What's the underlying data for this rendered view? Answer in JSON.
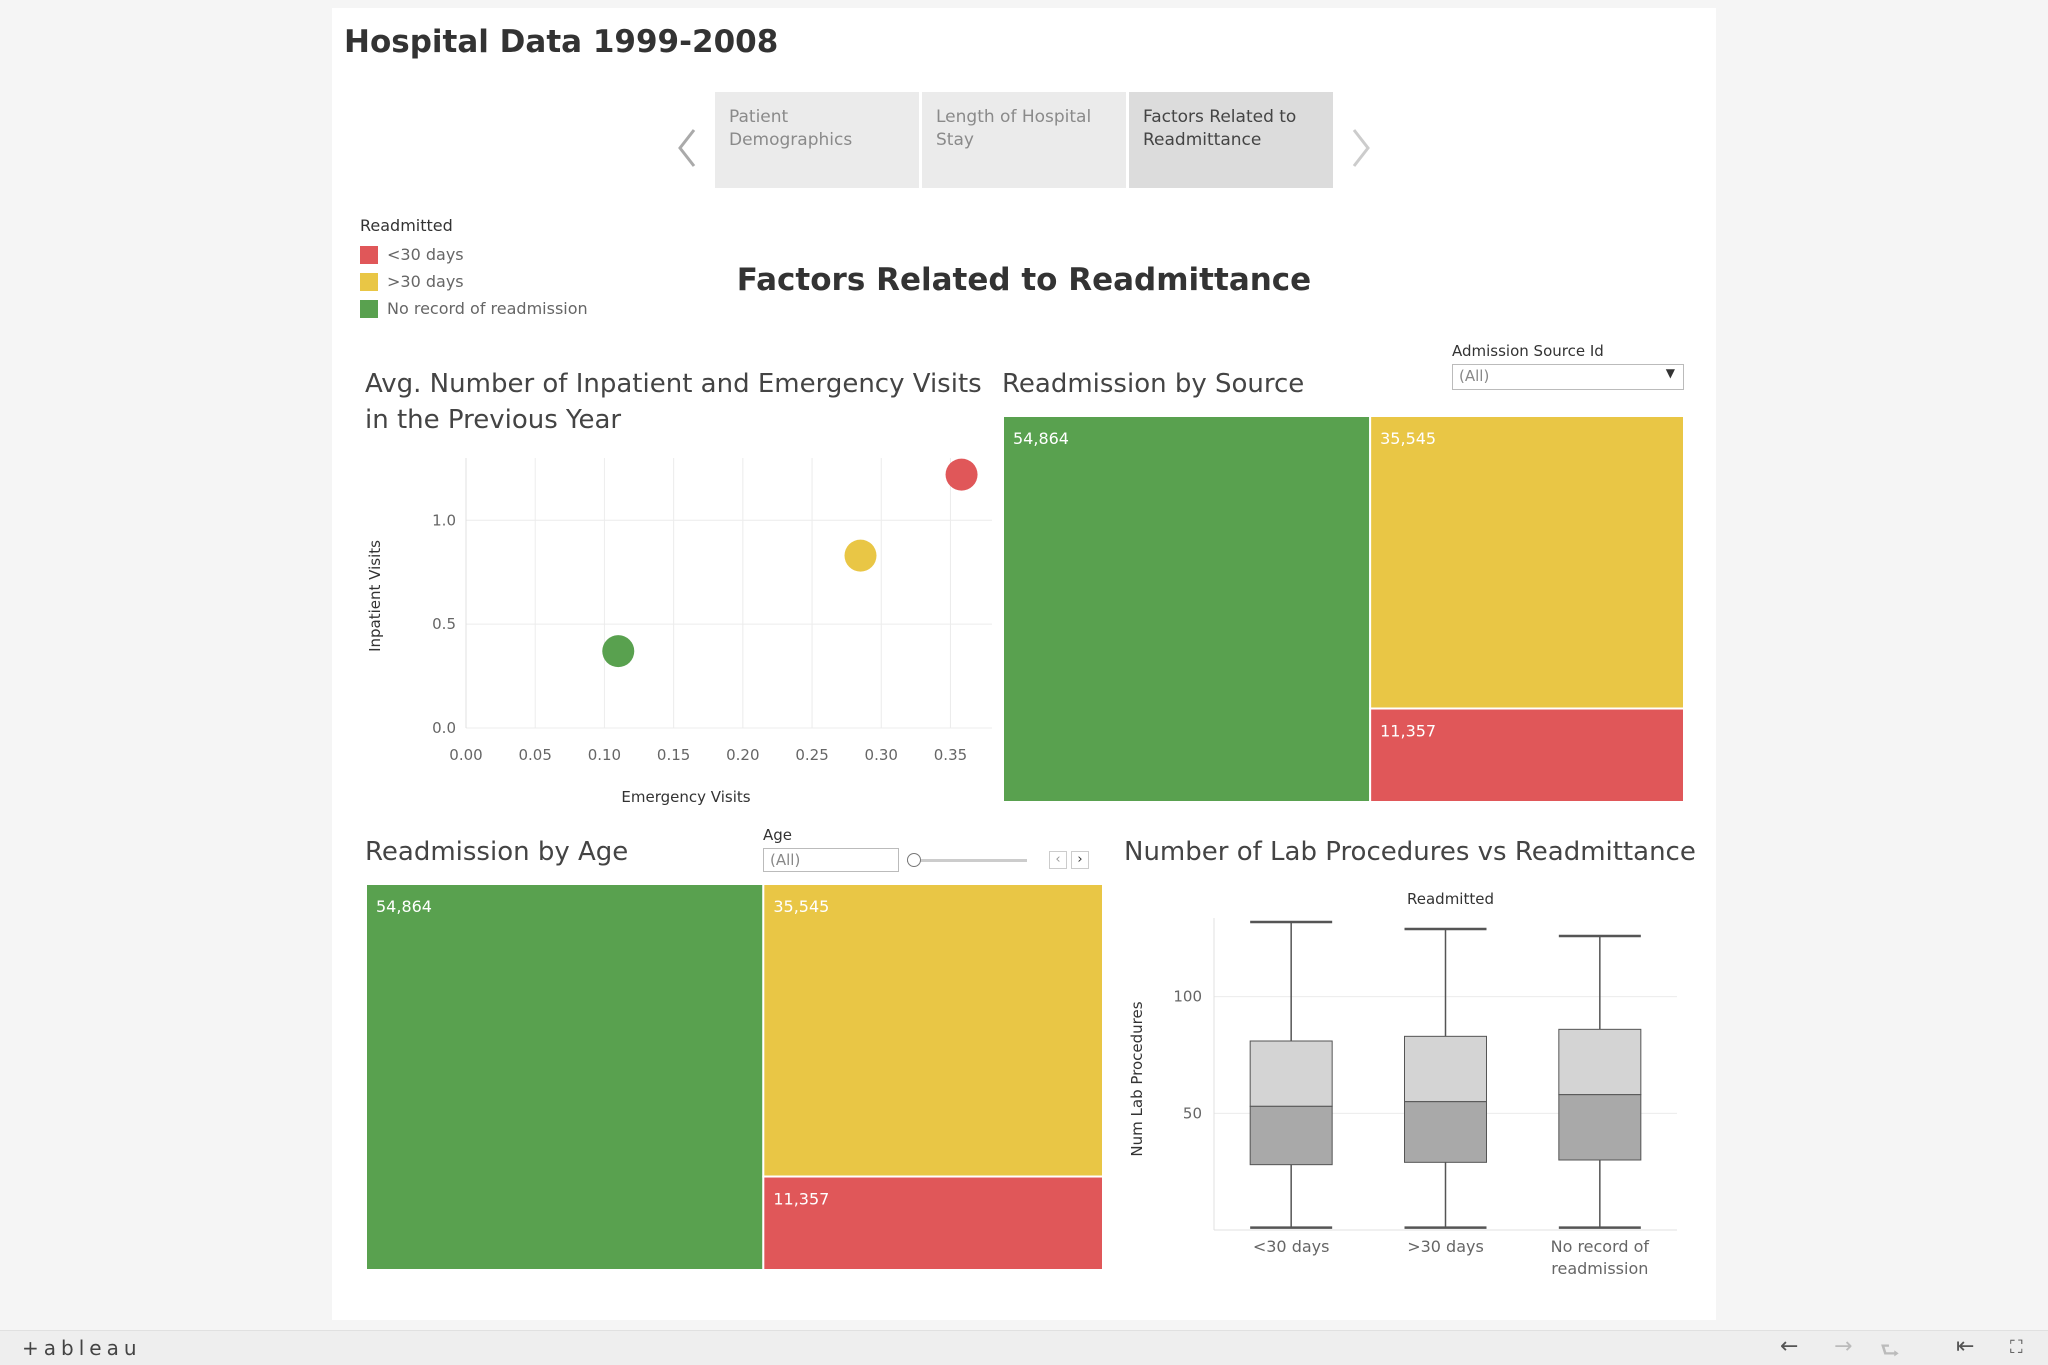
{
  "dashboard_title": "Hospital Data 1999-2008",
  "story_tabs": [
    {
      "label": "Patient Demographics"
    },
    {
      "label": "Length of Hospital Stay"
    },
    {
      "label": "Factors Related to Readmittance"
    }
  ],
  "legend": {
    "title": "Readmitted",
    "items": [
      {
        "label": "<30 days",
        "color": "#e05759"
      },
      {
        "label": ">30 days",
        "color": "#e9c645"
      },
      {
        "label": "No record of readmission",
        "color": "#59a14f"
      }
    ]
  },
  "main_title": "Factors Related to Readmittance",
  "scatter": {
    "title": "Avg. Number of Inpatient and Emergency Visits in the Previous Year",
    "chart_data": {
      "type": "scatter",
      "xlabel": "Emergency Visits",
      "ylabel": "Inpatient Visits",
      "xlim": [
        0.0,
        0.38
      ],
      "ylim": [
        0.0,
        1.3
      ],
      "x_ticks": [
        "0.00",
        "0.05",
        "0.10",
        "0.15",
        "0.20",
        "0.25",
        "0.30",
        "0.35"
      ],
      "y_ticks": [
        "0.0",
        "0.5",
        "1.0"
      ],
      "points": [
        {
          "x": 0.11,
          "y": 0.37,
          "color": "#59a14f"
        },
        {
          "x": 0.285,
          "y": 0.83,
          "color": "#e9c645"
        },
        {
          "x": 0.358,
          "y": 1.22,
          "color": "#e05759"
        }
      ]
    }
  },
  "source_treemap": {
    "title": "Readmission by Source",
    "filter_label": "Admission Source Id",
    "filter_value": "(All)",
    "chart_data": {
      "type": "treemap",
      "items": [
        {
          "value": 54864,
          "label": "54,864",
          "color": "#59a14f"
        },
        {
          "value": 35545,
          "label": "35,545",
          "color": "#e9c645"
        },
        {
          "value": 11357,
          "label": "11,357",
          "color": "#e05759"
        }
      ]
    }
  },
  "age_treemap": {
    "title": "Readmission by Age",
    "filter_label": "Age",
    "filter_value": "(All)",
    "chart_data": {
      "type": "treemap",
      "items": [
        {
          "value": 54864,
          "label": "54,864",
          "color": "#59a14f"
        },
        {
          "value": 35545,
          "label": "35,545",
          "color": "#e9c645"
        },
        {
          "value": 11357,
          "label": "11,357",
          "color": "#e05759"
        }
      ]
    }
  },
  "lab_boxplot": {
    "title": "Number of Lab Procedures vs Readmittance",
    "chart_data": {
      "type": "boxplot",
      "header": "Readmitted",
      "ylabel": "Num Lab Procedures",
      "ylim": [
        0,
        138
      ],
      "y_ticks": [
        50,
        100
      ],
      "boxes": [
        {
          "category": "<30 days",
          "min": 1,
          "q1": 28,
          "median": 53,
          "q3": 81,
          "max": 132
        },
        {
          "category": ">30 days",
          "min": 1,
          "q1": 29,
          "median": 55,
          "q3": 83,
          "max": 129
        },
        {
          "category": "No record of readmission",
          "min": 1,
          "q1": 30,
          "median": 58,
          "q3": 86,
          "max": 126
        }
      ]
    }
  },
  "footer": {
    "logo": "+ableau"
  }
}
